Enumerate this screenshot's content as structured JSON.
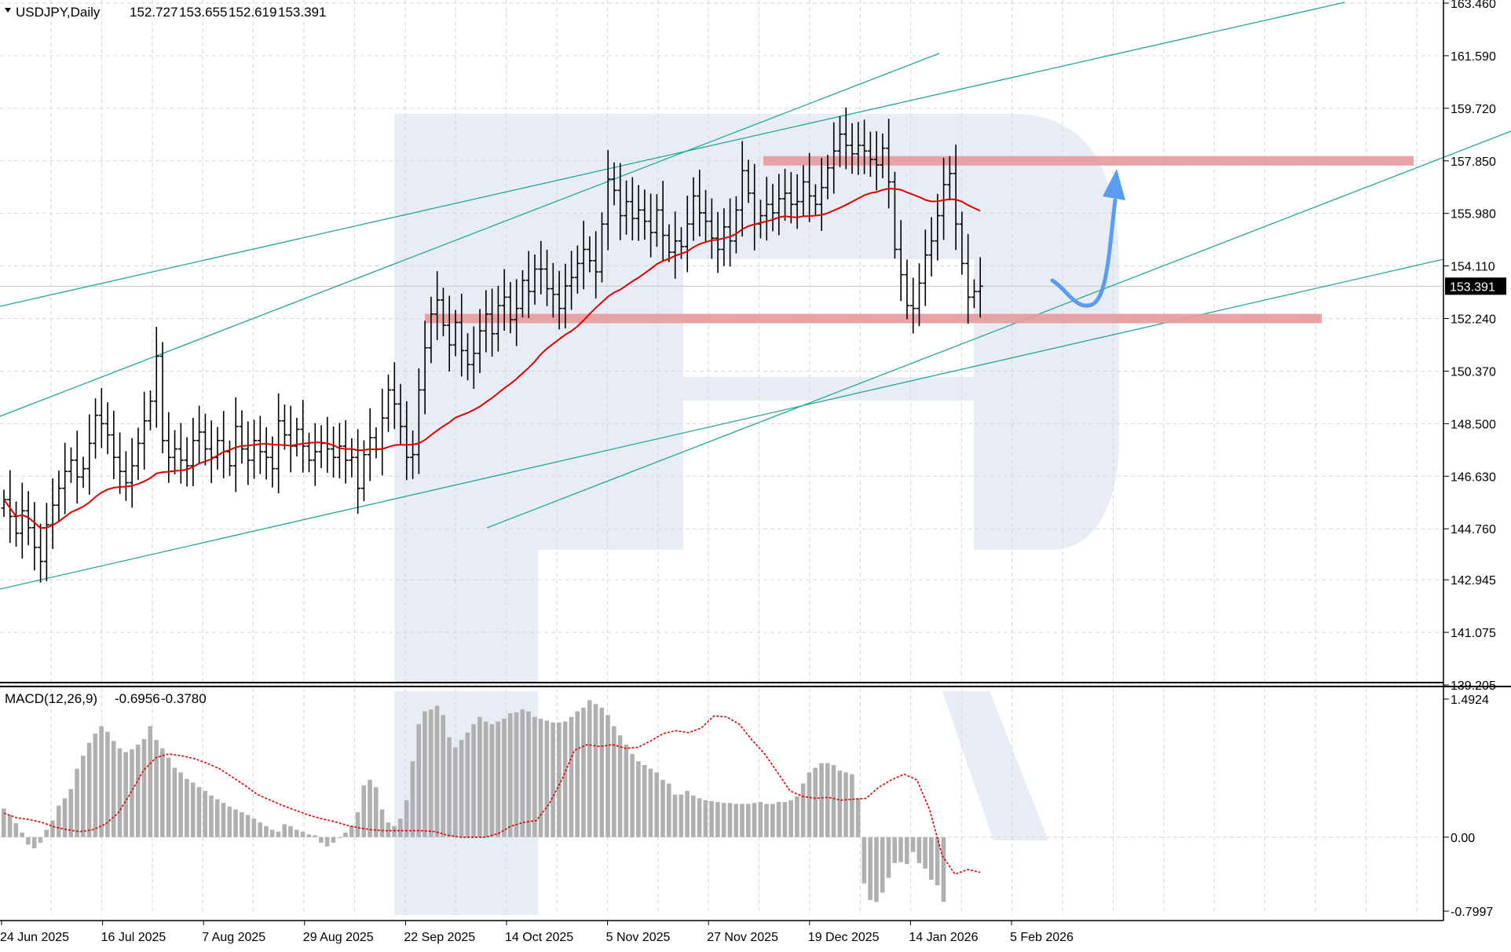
{
  "header": {
    "symbol": "USDJPY,Daily",
    "open": "152.727",
    "high": "153.655",
    "low": "152.619",
    "close": "153.391"
  },
  "colors": {
    "candle": "#000000",
    "ma": "#e00000",
    "trendline": "#26a69a",
    "zone": "#e7999c",
    "arrow": "#5b9bf0",
    "macd_hist": "#b0b0b0",
    "signal": "#e00000",
    "watermark": "#e8edf5",
    "price_tag_bg": "#000000"
  },
  "chart_data": [
    {
      "type": "ohlc",
      "title": "USDJPY,Daily",
      "ylim": [
        139.205,
        163.46
      ],
      "y_ticks": [
        "163.460",
        "161.590",
        "159.720",
        "157.850",
        "155.980",
        "154.110",
        "152.240",
        "150.370",
        "148.500",
        "146.630",
        "144.760",
        "142.945",
        "141.075",
        "139.205"
      ],
      "last_price": "153.391",
      "x_labels": [
        "24 Jun 2025",
        "16 Jul 2025",
        "7 Aug 2025",
        "29 Aug 2025",
        "22 Sep 2025",
        "14 Oct 2025",
        "5 Nov 2025",
        "27 Nov 2025",
        "19 Dec 2025",
        "14 Jan 2026",
        "5 Feb 2026"
      ],
      "closes": [
        145.8,
        145.2,
        144.6,
        145.4,
        144.8,
        144.1,
        143.6,
        144.9,
        145.6,
        146.2,
        146.8,
        147.2,
        146.6,
        146.9,
        147.8,
        148.8,
        148.5,
        148.1,
        147.3,
        146.8,
        146.4,
        147.0,
        147.8,
        148.6,
        149.3,
        150.9,
        147.9,
        147.3,
        147.6,
        147.2,
        147.0,
        147.9,
        148.2,
        147.6,
        147.3,
        147.9,
        147.5,
        147.0,
        148.4,
        147.6,
        147.2,
        147.9,
        147.5,
        147.3,
        146.9,
        148.6,
        148.1,
        147.7,
        148.3,
        147.7,
        147.2,
        147.5,
        147.8,
        147.6,
        147.3,
        147.7,
        147.2,
        147.3,
        146.2,
        147.4,
        148.0,
        147.6,
        148.7,
        149.7,
        149.2,
        148.4,
        147.3,
        147.4,
        149.7,
        151.2,
        152.4,
        152.9,
        152.0,
        151.3,
        152.1,
        151.1,
        150.6,
        151.0,
        151.8,
        152.4,
        151.7,
        152.7,
        153.0,
        152.2,
        152.6,
        153.6,
        153.2,
        154.0,
        154.0,
        153.3,
        153.1,
        152.6,
        153.4,
        153.7,
        154.2,
        154.7,
        154.3,
        153.9,
        155.6,
        157.2,
        156.8,
        155.9,
        156.4,
        155.8,
        156.1,
        155.7,
        155.3,
        156.1,
        155.2,
        154.6,
        155.0,
        154.8,
        155.6,
        156.6,
        156.0,
        155.7,
        155.1,
        154.7,
        155.5,
        155.0,
        156.1,
        157.5,
        156.7,
        155.6,
        155.9,
        156.3,
        156.0,
        156.5,
        156.7,
        156.3,
        156.4,
        157.1,
        156.6,
        156.3,
        156.9,
        157.6,
        158.2,
        158.8,
        158.4,
        158.1,
        158.4,
        158.2,
        157.9,
        157.7,
        158.3,
        157.1,
        154.7,
        153.8,
        152.7,
        152.6,
        153.5,
        154.5,
        155.0,
        155.9,
        157.0,
        157.4,
        155.6,
        154.2,
        153.0,
        153.2,
        153.391
      ],
      "ma_period_note": "",
      "zones": [
        157.85,
        152.24
      ]
    },
    {
      "type": "bar",
      "title": "MACD(12,26,9) -0.6956 -0.3780",
      "label": "MACD(12,26,9)",
      "macd_value": "-0.6956",
      "signal_value": "-0.3780",
      "ylim": [
        -0.7997,
        1.4924
      ],
      "y_ticks": [
        "1.4924",
        "0.00",
        "-0.7997"
      ],
      "series": [
        {
          "name": "MACD",
          "values": [
            0.31,
            0.24,
            0.15,
            0.05,
            -0.08,
            -0.12,
            -0.06,
            0.08,
            0.18,
            0.34,
            0.42,
            0.52,
            0.74,
            0.88,
            1.02,
            1.12,
            1.2,
            1.14,
            1.04,
            0.96,
            0.92,
            0.95,
            1.0,
            1.06,
            1.2,
            1.05,
            0.96,
            0.86,
            0.75,
            0.7,
            0.63,
            0.59,
            0.54,
            0.5,
            0.45,
            0.41,
            0.37,
            0.33,
            0.3,
            0.27,
            0.24,
            0.2,
            0.16,
            0.12,
            0.08,
            0.06,
            0.14,
            0.12,
            0.08,
            0.06,
            0.03,
            0.02,
            -0.06,
            -0.1,
            -0.06,
            0.0,
            0.05,
            0.12,
            0.27,
            0.56,
            0.62,
            0.54,
            0.3,
            0.16,
            0.12,
            0.2,
            0.4,
            0.82,
            1.22,
            1.36,
            1.38,
            1.42,
            1.32,
            1.08,
            0.97,
            1.05,
            1.13,
            1.22,
            1.3,
            1.25,
            1.22,
            1.25,
            1.28,
            1.34,
            1.35,
            1.38,
            1.36,
            1.3,
            1.28,
            1.26,
            1.24,
            1.24,
            1.25,
            1.3,
            1.36,
            1.4,
            1.48,
            1.44,
            1.4,
            1.32,
            1.2,
            1.1,
            1.0,
            0.9,
            0.82,
            0.78,
            0.74,
            0.7,
            0.62,
            0.58,
            0.46,
            0.46,
            0.5,
            0.45,
            0.42,
            0.4,
            0.39,
            0.38,
            0.37,
            0.37,
            0.36,
            0.36,
            0.36,
            0.37,
            0.38,
            0.36,
            0.36,
            0.38,
            0.38,
            0.4,
            0.44,
            0.58,
            0.7,
            0.75,
            0.8,
            0.8,
            0.78,
            0.72,
            0.7,
            0.68,
            0.42,
            -0.5,
            -0.68,
            -0.7,
            -0.6,
            -0.44,
            -0.28,
            -0.27,
            -0.29,
            -0.16,
            -0.28,
            -0.34,
            -0.46,
            -0.52,
            -0.7
          ]
        },
        {
          "name": "Signal",
          "values": [
            0.26,
            0.21,
            0.19,
            0.16,
            0.11,
            0.08,
            0.06,
            0.08,
            0.14,
            0.26,
            0.48,
            0.72,
            0.86,
            0.9,
            0.88,
            0.85,
            0.8,
            0.74,
            0.65,
            0.56,
            0.46,
            0.4,
            0.34,
            0.29,
            0.24,
            0.2,
            0.17,
            0.13,
            0.1,
            0.08,
            0.07,
            0.07,
            0.07,
            0.07,
            0.06,
            0.02,
            0.0,
            0.0,
            0.0,
            0.04,
            0.12,
            0.16,
            0.18,
            0.36,
            0.62,
            0.94,
            1.0,
            0.98,
            1.0,
            0.96,
            0.97,
            1.04,
            1.12,
            1.15,
            1.13,
            1.18,
            1.31,
            1.3,
            1.22,
            1.05,
            0.9,
            0.7,
            0.5,
            0.44,
            0.42,
            0.43,
            0.4,
            0.41,
            0.42,
            0.54,
            0.62,
            0.68,
            0.62,
            0.3,
            -0.2,
            -0.4,
            -0.35,
            -0.38
          ]
        }
      ]
    }
  ]
}
